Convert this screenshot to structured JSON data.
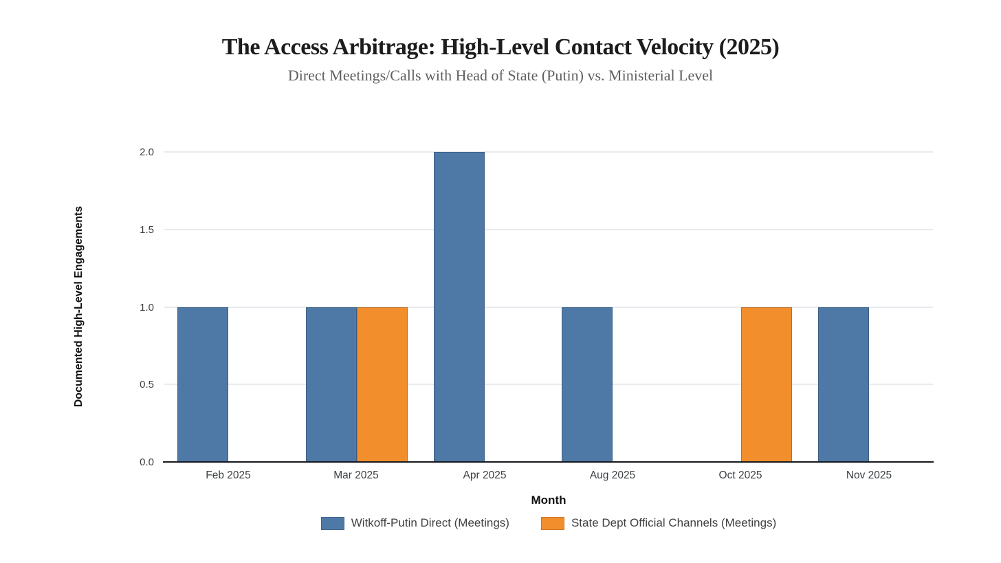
{
  "chart_data": {
    "type": "bar",
    "bar_mode": "grouped",
    "title": "The Access Arbitrage: High-Level Contact Velocity (2025)",
    "subtitle": "Direct Meetings/Calls with Head of State (Putin) vs. Ministerial Level",
    "xlabel": "Month",
    "ylabel": "Documented High-Level Engagements",
    "categories": [
      "Feb 2025",
      "Mar 2025",
      "Apr 2025",
      "Aug 2025",
      "Oct 2025",
      "Nov 2025"
    ],
    "series": [
      {
        "name": "Witkoff-Putin Direct (Meetings)",
        "color": "#4e79a7",
        "values": [
          1,
          1,
          2,
          1,
          0,
          1
        ]
      },
      {
        "name": "State Dept Official Channels (Meetings)",
        "color": "#f28e2c",
        "values": [
          0,
          1,
          0,
          0,
          1,
          0
        ]
      }
    ],
    "ylim": [
      0,
      2
    ],
    "yticks": [
      0.0,
      0.5,
      1.0,
      1.5,
      2.0
    ],
    "ytick_labels": [
      "0.0",
      "0.5",
      "1.0",
      "1.5",
      "2.0"
    ],
    "grid": true,
    "legend_position": "bottom"
  },
  "colors": {
    "background": "#ffffff",
    "title": "#1c1c1c",
    "subtitle": "#5f5f5f",
    "tick_label": "#3c4043",
    "axis_title": "#111111",
    "gridline": "#e8eaee",
    "baseline": "#16181c",
    "legend_text": "#404040"
  }
}
